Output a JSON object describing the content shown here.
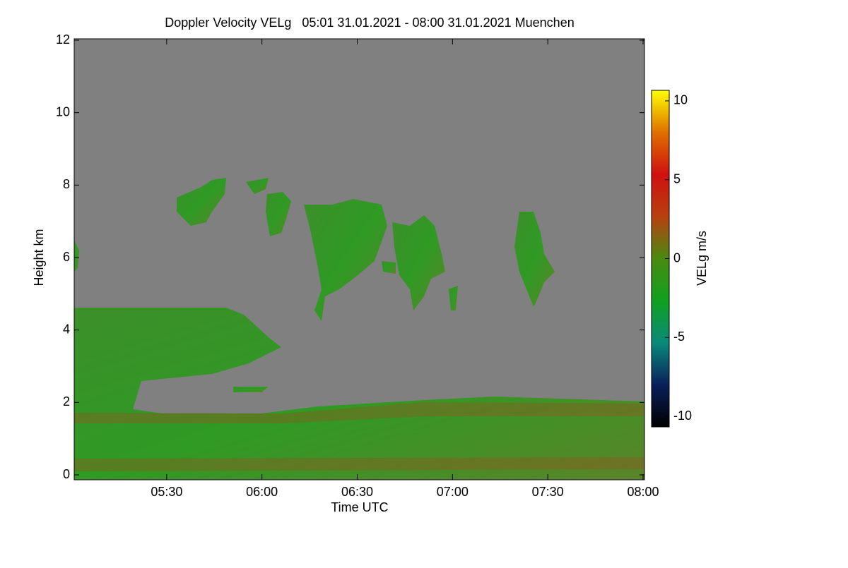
{
  "chart_data": {
    "type": "heatmap",
    "title": "Doppler Velocity VELg   05:01 31.01.2021 - 08:00 31.01.2021 Muenchen",
    "xlabel": "Time UTC",
    "ylabel": "Height km",
    "colorbar_label": "VELg m/s",
    "xlim": [
      301,
      480
    ],
    "xticks": [
      {
        "value": 330,
        "label": "05:30"
      },
      {
        "value": 360,
        "label": "06:00"
      },
      {
        "value": 390,
        "label": "06:30"
      },
      {
        "value": 420,
        "label": "07:00"
      },
      {
        "value": 450,
        "label": "07:30"
      },
      {
        "value": 480,
        "label": "08:00"
      }
    ],
    "ylim": [
      0,
      12
    ],
    "yticks": [
      0,
      2,
      4,
      6,
      8,
      10,
      12
    ],
    "clim": [
      -10.67,
      10.67
    ],
    "cticks": [
      -10,
      -5,
      0,
      5,
      10
    ],
    "colormap": [
      "#000000",
      "#0a1f5c",
      "#0a8a7a",
      "#10a020",
      "#4a8a10",
      "#b84010",
      "#d01010",
      "#e07000",
      "#ffff00"
    ],
    "background": "#808080"
  }
}
